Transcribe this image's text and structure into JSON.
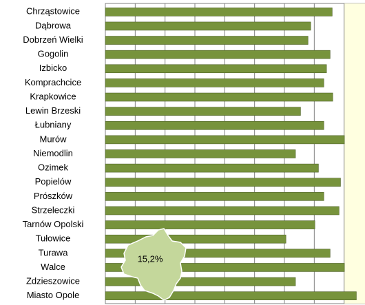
{
  "chart_data": {
    "type": "bar",
    "orientation": "horizontal",
    "categories": [
      "Chrząstowice",
      "Dąbrowa",
      "Dobrzeń Wielki",
      "Gogolin",
      "Izbicko",
      "Komprachcice",
      "Krapkowice",
      "Lewin Brzeski",
      "Łubniany",
      "Murów",
      "Niemodlin",
      "Ozimek",
      "Popielów",
      "Prószków",
      "Strzeleczki",
      "Tarnów Opolski",
      "Tułowice",
      "Turawa",
      "Walce",
      "Zdzieszowice",
      "Miasto Opole"
    ],
    "values": [
      7.6,
      6.88,
      6.79,
      7.53,
      7.41,
      7.32,
      7.62,
      6.54,
      7.32,
      8.01,
      6.37,
      7.14,
      7.88,
      7.32,
      7.83,
      7.02,
      6.05,
      7.53,
      8.01,
      6.37,
      8.41
    ],
    "color": "#77933c",
    "xlim": [
      0,
      8.7
    ],
    "xticks": [
      0,
      1,
      2,
      3,
      4,
      5,
      6,
      7,
      8
    ],
    "grid": true,
    "annotation": "15,2%"
  }
}
